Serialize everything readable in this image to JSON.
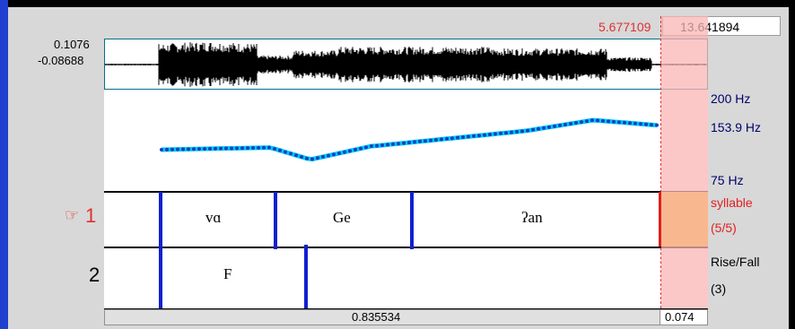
{
  "header": {
    "selection_start": "5.677109",
    "total_duration": "13.641894"
  },
  "waveform": {
    "max_label": "0.1076",
    "min_label": "-0.08688"
  },
  "pitch": {
    "top_label": "200 Hz",
    "cursor_value_label": "153.9 Hz",
    "bottom_label": "75 Hz"
  },
  "tiers": [
    {
      "number": "1",
      "name": "syllable",
      "count": "(5/5)",
      "selected": true,
      "intervals": [
        "vɑ",
        "Ge",
        "ʔan"
      ]
    },
    {
      "number": "2",
      "name": "Rise/Fall",
      "count": "(3)",
      "selected": false,
      "intervals": [
        "F"
      ]
    }
  ],
  "bottom": {
    "visible_duration": "0.835534",
    "selection_duration": "0.074"
  },
  "icons": {
    "tier_pointer": "pointing-hand-icon"
  },
  "colors": {
    "selection": "#e03030",
    "boundary": "#1020d0",
    "pitch_curve": "#00c8e8",
    "pitch_points": "#1040d0"
  }
}
